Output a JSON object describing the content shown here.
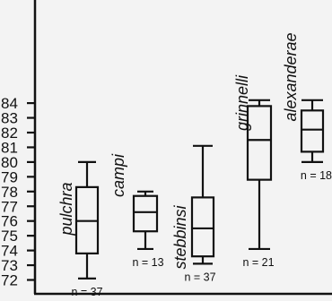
{
  "chart_data": {
    "type": "box",
    "title": "",
    "xlabel": "",
    "ylabel": "",
    "ylim": [
      71.5,
      84.3
    ],
    "yticks": [
      72,
      73,
      74,
      75,
      76,
      77,
      78,
      79,
      80,
      81,
      82,
      83,
      84
    ],
    "grid": false,
    "series": [
      {
        "name": "pulchra",
        "n_label": "n = 37",
        "min": 72.1,
        "q1": 73.8,
        "median": 76.0,
        "q3": 78.3,
        "max": 80.0
      },
      {
        "name": "campi",
        "n_label": "n = 13",
        "min": 74.1,
        "q1": 75.3,
        "median": 76.6,
        "q3": 77.7,
        "max": 78.0
      },
      {
        "name": "stebbinsi",
        "n_label": "n = 37",
        "min": 73.1,
        "q1": 73.6,
        "median": 75.5,
        "q3": 77.6,
        "max": 81.1
      },
      {
        "name": "grinnelli",
        "n_label": "n = 21",
        "min": 74.1,
        "q1": 78.8,
        "median": 81.5,
        "q3": 83.8,
        "max": 84.2
      },
      {
        "name": "alexanderae",
        "n_label": "n = 18",
        "min": 80.0,
        "q1": 80.7,
        "median": 82.2,
        "q3": 83.5,
        "max": 84.2
      }
    ]
  }
}
